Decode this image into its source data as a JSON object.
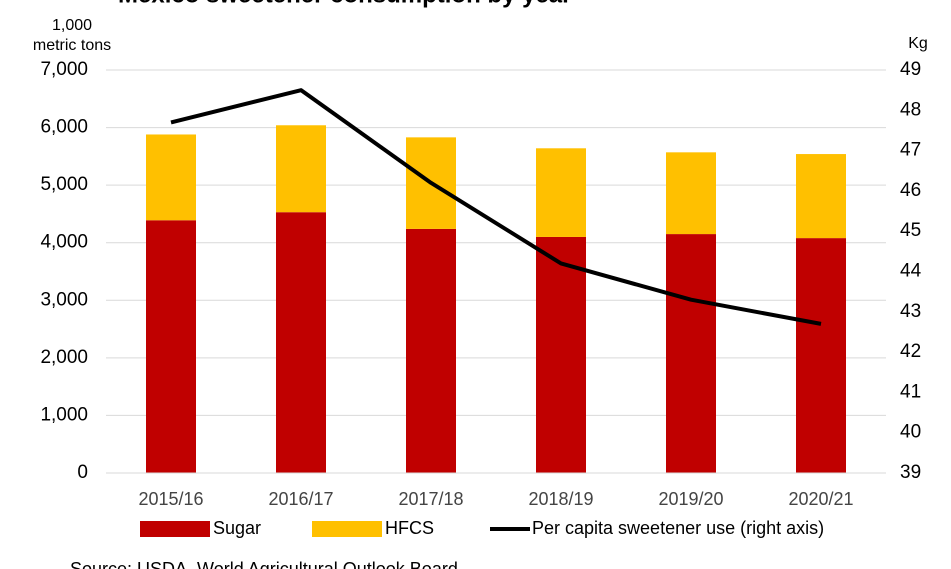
{
  "chart_data": {
    "type": "stacked-bar-line",
    "title": "Mexico sweetener consumption by year",
    "ylabel": [
      "1,000",
      "metric tons"
    ],
    "y2label": "Kg",
    "source": "Source: USDA, World Agricultural Outlook Board",
    "categories": [
      "2015/16",
      "2016/17",
      "2017/18",
      "2018/19",
      "2019/20",
      "2020/21"
    ],
    "series": [
      {
        "name": "Sugar",
        "color": "#c00000",
        "type": "bar",
        "values": [
          4390,
          4530,
          4240,
          4100,
          4150,
          4080
        ]
      },
      {
        "name": "HFCS",
        "color": "#ffc000",
        "type": "bar",
        "values": [
          1490,
          1510,
          1590,
          1540,
          1420,
          1460
        ]
      },
      {
        "name": "Per capita sweetener use (right axis)",
        "color": "#000000",
        "type": "line",
        "axis": "y2",
        "values": [
          47.7,
          48.5,
          46.2,
          44.2,
          43.3,
          42.7
        ]
      }
    ],
    "ylim": [
      0,
      7000
    ],
    "yticks": [
      0,
      {
        "value": 1000,
        "label": "1,000"
      },
      {
        "value": 2000,
        "label": "2,000"
      },
      {
        "value": 3000,
        "label": "3,000"
      },
      {
        "value": 4000,
        "label": "4,000"
      },
      {
        "value": 5000,
        "label": "5,000"
      },
      {
        "value": 6000,
        "label": "6,000"
      },
      {
        "value": 7000,
        "label": "7,000"
      }
    ],
    "y2lim": [
      39,
      49
    ],
    "y2ticks": [
      39,
      40,
      41,
      42,
      43,
      44,
      45,
      46,
      47,
      48,
      49
    ],
    "grid": true
  }
}
